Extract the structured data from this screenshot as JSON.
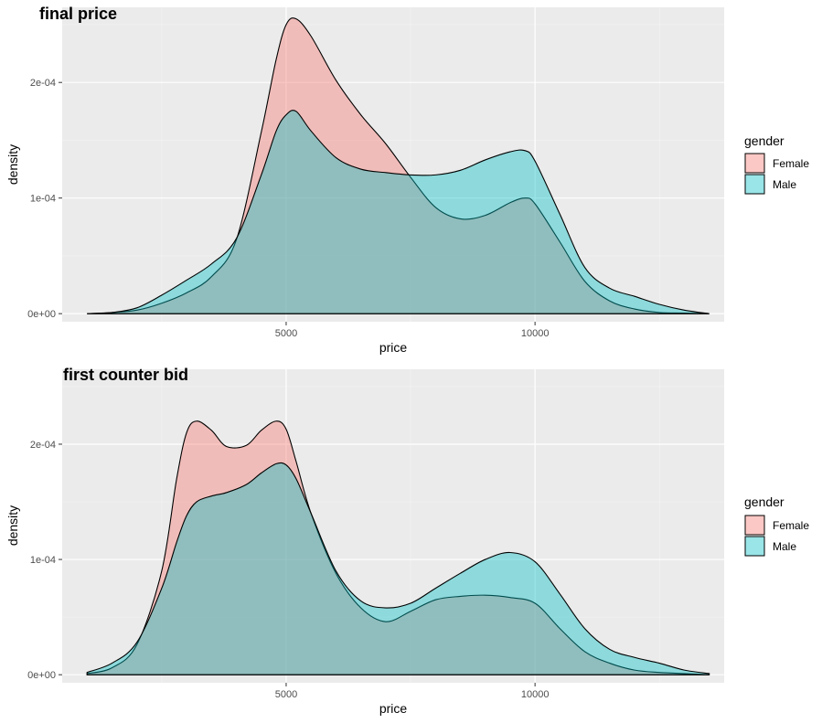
{
  "chart_data": [
    {
      "type": "area",
      "title": "final price",
      "xlabel": "price",
      "ylabel": "density",
      "xlim": [
        500,
        13800
      ],
      "ylim": [
        -7e-06,
        0.000265
      ],
      "x_ticks": [
        {
          "value": 5000,
          "label": "5000"
        },
        {
          "value": 10000,
          "label": "10000"
        }
      ],
      "y_ticks": [
        {
          "value": 0,
          "label": "0e+00"
        },
        {
          "value": 0.0001,
          "label": "1e-04"
        },
        {
          "value": 0.0002,
          "label": "2e-04"
        }
      ],
      "grid": true,
      "legend": {
        "title": "gender",
        "position": "right"
      },
      "series": [
        {
          "name": "Female",
          "color": "#F8766D",
          "x": [
            1000,
            1500,
            2000,
            2500,
            3000,
            3500,
            4000,
            4500,
            4800,
            5000,
            5200,
            5500,
            6000,
            6500,
            7000,
            7500,
            8000,
            8500,
            9000,
            9500,
            9800,
            10000,
            10500,
            11000,
            11500,
            12000,
            12500,
            13000,
            13500
          ],
          "values": [
            0,
            1e-06,
            3e-06,
            9e-06,
            1.8e-05,
            3.2e-05,
            6.4e-05,
            0.000157,
            0.00022,
            0.00025,
            0.000255,
            0.00024,
            0.000202,
            0.000172,
            0.000147,
            0.000118,
            9.2e-05,
            8.2e-05,
            8.5e-05,
            9.6e-05,
            0.0001,
            9.5e-05,
            6.2e-05,
            2.8e-05,
            1.1e-05,
            4e-06,
            1e-06,
            5e-07,
            0
          ]
        },
        {
          "name": "Male",
          "color": "#00BFC4",
          "x": [
            1000,
            1500,
            2000,
            2500,
            3000,
            3500,
            4000,
            4500,
            4800,
            5000,
            5200,
            5500,
            6000,
            6500,
            7000,
            7500,
            8000,
            8500,
            9000,
            9500,
            9800,
            10000,
            10500,
            11000,
            11500,
            12000,
            12500,
            13000,
            13500
          ],
          "values": [
            0,
            1e-06,
            5e-06,
            1.6e-05,
            2.9e-05,
            4.3e-05,
            6.5e-05,
            0.00012,
            0.000158,
            0.000172,
            0.000175,
            0.000158,
            0.000135,
            0.000125,
            0.000122,
            0.00012,
            0.00012,
            0.000124,
            0.000133,
            0.00014,
            0.000141,
            0.000132,
            8.6e-05,
            4e-05,
            2.2e-05,
            1.5e-05,
            8e-06,
            3e-06,
            0
          ]
        }
      ]
    },
    {
      "type": "area",
      "title": "first counter bid",
      "xlabel": "price",
      "ylabel": "density",
      "xlim": [
        500,
        13800
      ],
      "ylim": [
        -7e-06,
        0.000265
      ],
      "x_ticks": [
        {
          "value": 5000,
          "label": "5000"
        },
        {
          "value": 10000,
          "label": "10000"
        }
      ],
      "y_ticks": [
        {
          "value": 0,
          "label": "0e+00"
        },
        {
          "value": 0.0001,
          "label": "1e-04"
        },
        {
          "value": 0.0002,
          "label": "2e-04"
        }
      ],
      "grid": true,
      "legend": {
        "title": "gender",
        "position": "right"
      },
      "series": [
        {
          "name": "Female",
          "color": "#F8766D",
          "x": [
            1000,
            1500,
            2000,
            2500,
            2800,
            3000,
            3200,
            3500,
            3800,
            4200,
            4500,
            4800,
            5000,
            5200,
            5500,
            6000,
            6500,
            7000,
            7500,
            8000,
            8500,
            9000,
            9500,
            10000,
            10500,
            11000,
            11500,
            12000,
            12500,
            13000,
            13500
          ],
          "values": [
            1e-06,
            6e-06,
            2.6e-05,
            9e-05,
            0.00017,
            0.00021,
            0.00022,
            0.000212,
            0.000198,
            0.000199,
            0.000212,
            0.00022,
            0.000213,
            0.000185,
            0.00014,
            8.8e-05,
            5.8e-05,
            4.6e-05,
            5.5e-05,
            6.5e-05,
            6.8e-05,
            6.9e-05,
            6.7e-05,
            6.2e-05,
            4e-05,
            2e-05,
            1e-05,
            4e-06,
            2e-06,
            1e-06,
            0
          ]
        },
        {
          "name": "Male",
          "color": "#00BFC4",
          "x": [
            1000,
            1500,
            2000,
            2500,
            2800,
            3000,
            3200,
            3500,
            3800,
            4200,
            4500,
            4800,
            5000,
            5200,
            5500,
            6000,
            6500,
            7000,
            7500,
            8000,
            8500,
            9000,
            9500,
            10000,
            10500,
            11000,
            11500,
            12000,
            12500,
            13000,
            13500
          ],
          "values": [
            2e-06,
            1e-05,
            2.8e-05,
            7.5e-05,
            0.000115,
            0.000138,
            0.00015,
            0.000155,
            0.000158,
            0.000165,
            0.000175,
            0.000183,
            0.000182,
            0.00017,
            0.00014,
            9e-05,
            6.4e-05,
            5.8e-05,
            6.2e-05,
            7.5e-05,
            8.8e-05,
            0.0001,
            0.000106,
            9.8e-05,
            7e-05,
            4e-05,
            2.2e-05,
            1.5e-05,
            1e-05,
            4e-06,
            1e-06
          ]
        }
      ]
    }
  ]
}
